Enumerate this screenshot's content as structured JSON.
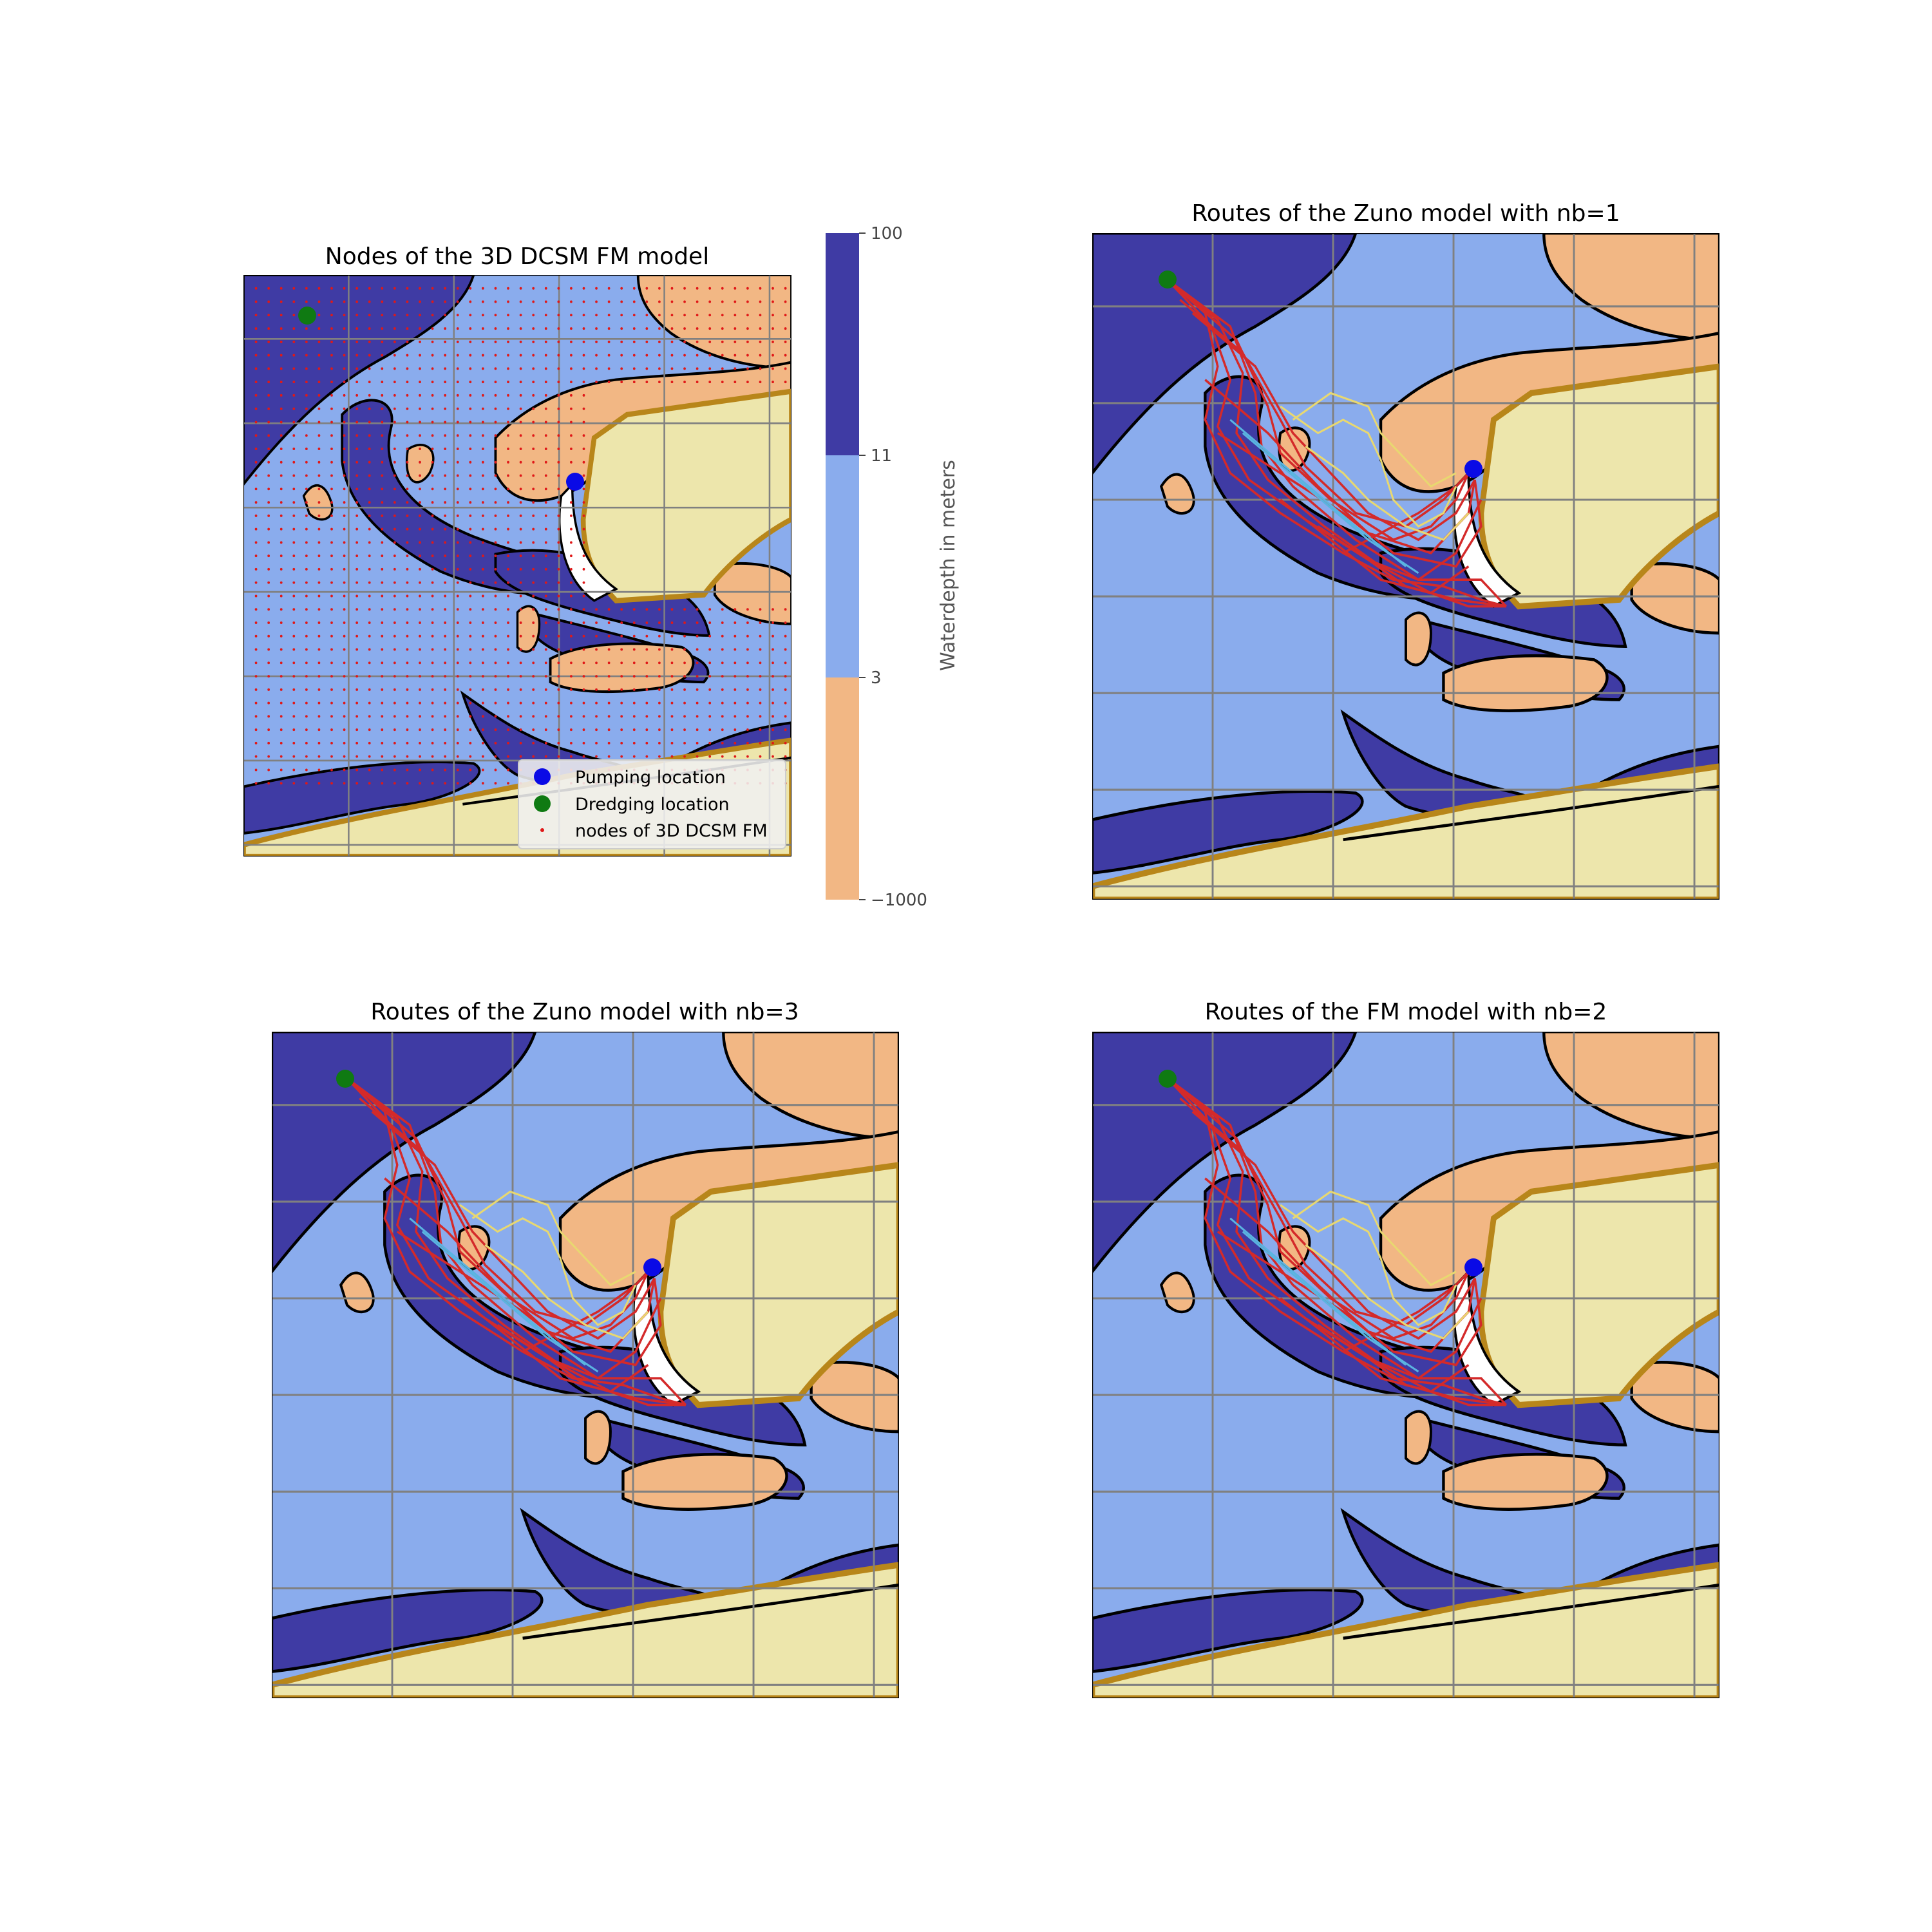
{
  "figure": {
    "panels": [
      {
        "id": "nodes",
        "title": "Nodes of the 3D DCSM FM model"
      },
      {
        "id": "zuno1",
        "title": "Routes of the Zuno model with nb=1"
      },
      {
        "id": "zuno3",
        "title": "Routes of the Zuno model with nb=3"
      },
      {
        "id": "fm2",
        "title": "Routes of the FM model with nb=2"
      }
    ],
    "colorbar": {
      "label": "Waterdepth in meters",
      "ticks": [
        "100",
        "11",
        "3",
        "−1000"
      ],
      "colors": {
        "deep": "#3f3ba4",
        "mid": "#8aaced",
        "shallow": "#f2b784"
      }
    },
    "legend": {
      "pumping": "Pumping location",
      "dredging": "Dredging location",
      "nodes": "nodes of 3D DCSM FM"
    },
    "colors": {
      "land": "#ede6ac",
      "coast": "#b8861a",
      "route": "#d42a2a",
      "route_alt": "#e8d870",
      "route_cyan": "#5ab4e0",
      "pump": "#0a0ae6",
      "dredge": "#0f7a12",
      "node": "#e01818",
      "grid": "#808080"
    },
    "markers": {
      "pump_lonlat_frac": [
        0.61,
        0.35
      ],
      "dredge_lonlat_frac": [
        0.115,
        0.07
      ]
    }
  }
}
